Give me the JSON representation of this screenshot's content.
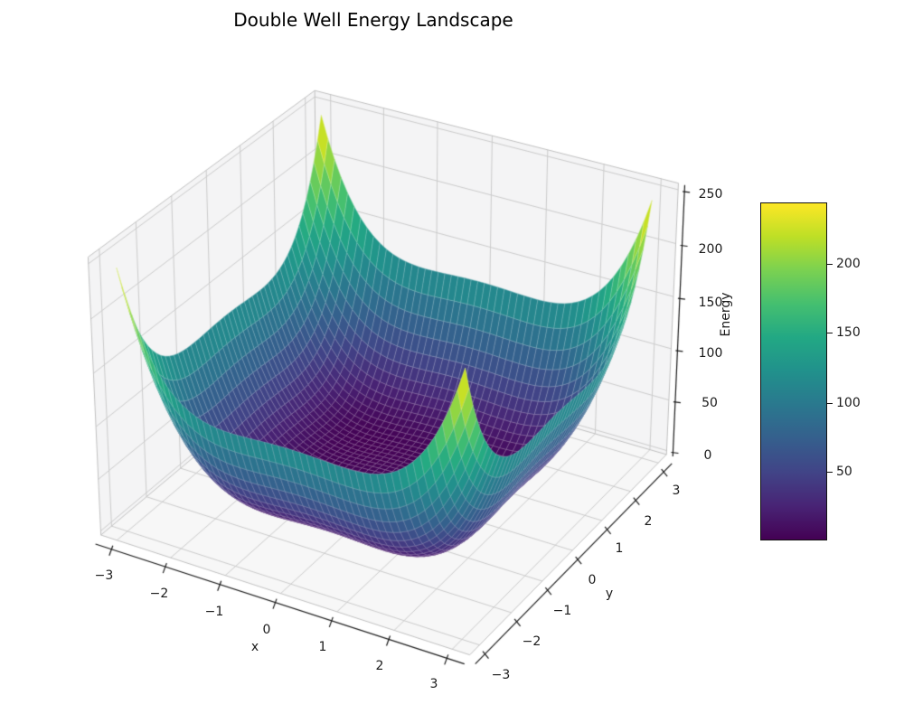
{
  "figure": {
    "title": "Double Well Energy Landscape"
  },
  "chart_data": {
    "type": "surface3d",
    "title": "Double Well Energy Landscape",
    "xlabel": "x",
    "ylabel": "y",
    "zlabel": "Energy",
    "x_range": [
      -3,
      3
    ],
    "y_range": [
      -3,
      3
    ],
    "z_range": [
      0,
      243.2
    ],
    "x_tick_values": [
      -3,
      -2,
      -1,
      0,
      1,
      2,
      3
    ],
    "x_tick_labels": [
      "−3",
      "−2",
      "−1",
      "0",
      "1",
      "2",
      "3"
    ],
    "y_tick_values": [
      -3,
      -2,
      -1,
      0,
      1,
      2,
      3
    ],
    "y_tick_labels": [
      "−3",
      "−2",
      "−1",
      "0",
      "1",
      "2",
      "3"
    ],
    "z_tick_values": [
      0,
      50,
      100,
      150,
      200,
      250
    ],
    "z_tick_labels": [
      "0",
      "50",
      "100",
      "150",
      "200",
      "250"
    ],
    "surface": {
      "grid_points": 50,
      "x_domain": [
        -3,
        3
      ],
      "y_domain": [
        -3,
        3
      ],
      "z_function": "z = 1.9·((x²−1)² + (y²−1)²)",
      "scale": 1.9,
      "wells": [
        [
          -1,
          -1
        ],
        [
          -1,
          1
        ],
        [
          1,
          -1
        ],
        [
          1,
          1
        ]
      ],
      "z_min": 0,
      "z_max": 243.2
    },
    "view": {
      "elevation_deg": 30,
      "azimuth_deg": -60
    },
    "legend_position": "right-colorbar",
    "grid": true,
    "colormap": {
      "name": "viridis",
      "stops": [
        [
          0.0,
          "#440154"
        ],
        [
          0.1,
          "#482475"
        ],
        [
          0.2,
          "#414487"
        ],
        [
          0.3,
          "#355f8d"
        ],
        [
          0.4,
          "#2a788e"
        ],
        [
          0.5,
          "#21918c"
        ],
        [
          0.6,
          "#22a884"
        ],
        [
          0.7,
          "#44bf70"
        ],
        [
          0.8,
          "#7ad151"
        ],
        [
          0.9,
          "#bddf26"
        ],
        [
          1.0,
          "#fde725"
        ]
      ]
    },
    "colorbar": {
      "vmin": 0,
      "vmax": 243.2,
      "tick_values": [
        50,
        100,
        150,
        200
      ],
      "tick_labels": [
        "50",
        "100",
        "150",
        "200"
      ]
    }
  }
}
